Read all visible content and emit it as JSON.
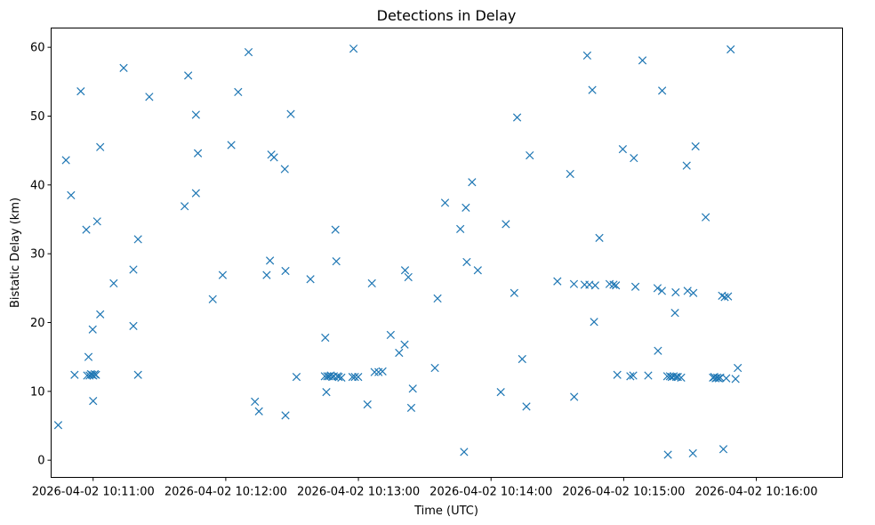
{
  "chart_data": {
    "type": "scatter",
    "title": "Detections in Delay",
    "xlabel": "Time (UTC)",
    "ylabel": "Bistatic Delay (km)",
    "marker": "x",
    "color": "#1f77b4",
    "grid": false,
    "x_units": "seconds after 2026-04-02 10:11:00 UTC",
    "xlim": [
      -19,
      339
    ],
    "ylim": [
      -2.5,
      62.8
    ],
    "x_ticks": [
      {
        "value": 0,
        "label": "2026-04-02 10:11:00"
      },
      {
        "value": 60,
        "label": "2026-04-02 10:12:00"
      },
      {
        "value": 120,
        "label": "2026-04-02 10:13:00"
      },
      {
        "value": 180,
        "label": "2026-04-02 10:14:00"
      },
      {
        "value": 240,
        "label": "2026-04-02 10:15:00"
      },
      {
        "value": 300,
        "label": "2026-04-02 10:16:00"
      }
    ],
    "y_ticks": [
      {
        "value": 0,
        "label": "0"
      },
      {
        "value": 10,
        "label": "10"
      },
      {
        "value": 20,
        "label": "20"
      },
      {
        "value": 30,
        "label": "30"
      },
      {
        "value": 40,
        "label": "40"
      },
      {
        "value": 50,
        "label": "50"
      },
      {
        "value": 60,
        "label": "60"
      }
    ],
    "points": [
      [
        -15.8,
        5.1
      ],
      [
        -12.3,
        43.6
      ],
      [
        -10.0,
        38.5
      ],
      [
        -8.4,
        12.4
      ],
      [
        -5.6,
        53.6
      ],
      [
        -3.1,
        33.5
      ],
      [
        -2.7,
        12.3
      ],
      [
        -2.1,
        15.0
      ],
      [
        -1.6,
        12.3
      ],
      [
        -1.0,
        12.5
      ],
      [
        -0.5,
        12.4
      ],
      [
        -0.2,
        19.0
      ],
      [
        0.0,
        8.6
      ],
      [
        0.1,
        12.3
      ],
      [
        0.7,
        12.5
      ],
      [
        1.3,
        12.4
      ],
      [
        1.8,
        34.7
      ],
      [
        3.2,
        45.5
      ],
      [
        3.2,
        21.2
      ],
      [
        9.3,
        25.7
      ],
      [
        13.8,
        57.0
      ],
      [
        18.2,
        27.7
      ],
      [
        18.2,
        19.5
      ],
      [
        20.3,
        32.1
      ],
      [
        20.3,
        12.4
      ],
      [
        25.4,
        52.8
      ],
      [
        41.4,
        36.9
      ],
      [
        43.0,
        55.9
      ],
      [
        46.5,
        38.8
      ],
      [
        46.5,
        50.2
      ],
      [
        47.4,
        44.6
      ],
      [
        54.1,
        23.4
      ],
      [
        58.6,
        26.9
      ],
      [
        62.5,
        45.8
      ],
      [
        65.6,
        53.5
      ],
      [
        70.3,
        59.3
      ],
      [
        73.2,
        8.5
      ],
      [
        75.0,
        7.1
      ],
      [
        78.5,
        26.9
      ],
      [
        80.0,
        29.0
      ],
      [
        80.6,
        44.4
      ],
      [
        81.8,
        44.0
      ],
      [
        86.7,
        42.3
      ],
      [
        87.0,
        27.5
      ],
      [
        87.0,
        6.5
      ],
      [
        89.4,
        50.3
      ],
      [
        92.0,
        12.1
      ],
      [
        98.3,
        26.3
      ],
      [
        104.8,
        12.2
      ],
      [
        105.0,
        17.8
      ],
      [
        105.5,
        9.9
      ],
      [
        105.9,
        12.2
      ],
      [
        106.7,
        12.2
      ],
      [
        107.5,
        12.3
      ],
      [
        108.2,
        12.1
      ],
      [
        108.9,
        12.2
      ],
      [
        109.6,
        33.5
      ],
      [
        110.0,
        28.9
      ],
      [
        110.5,
        12.2
      ],
      [
        111.1,
        12.1
      ],
      [
        112.3,
        12.0
      ],
      [
        117.3,
        12.1
      ],
      [
        117.8,
        59.8
      ],
      [
        118.4,
        12.1
      ],
      [
        119.9,
        12.1
      ],
      [
        124.1,
        8.1
      ],
      [
        126.1,
        25.7
      ],
      [
        127.3,
        12.8
      ],
      [
        129.1,
        12.8
      ],
      [
        130.9,
        12.9
      ],
      [
        134.6,
        18.2
      ],
      [
        138.4,
        15.6
      ],
      [
        140.9,
        16.8
      ],
      [
        141.1,
        27.6
      ],
      [
        142.6,
        26.6
      ],
      [
        143.9,
        7.6
      ],
      [
        144.6,
        10.4
      ],
      [
        154.6,
        13.4
      ],
      [
        155.8,
        23.5
      ],
      [
        159.2,
        37.4
      ],
      [
        166.1,
        33.6
      ],
      [
        167.8,
        1.2
      ],
      [
        168.6,
        36.7
      ],
      [
        169.0,
        28.8
      ],
      [
        171.4,
        40.4
      ],
      [
        174.0,
        27.6
      ],
      [
        184.4,
        9.9
      ],
      [
        186.7,
        34.3
      ],
      [
        190.5,
        24.3
      ],
      [
        191.8,
        49.8
      ],
      [
        194.1,
        14.7
      ],
      [
        196.0,
        7.8
      ],
      [
        197.5,
        44.3
      ],
      [
        210.0,
        26.0
      ],
      [
        215.8,
        41.6
      ],
      [
        217.5,
        25.6
      ],
      [
        217.6,
        9.2
      ],
      [
        222.3,
        25.5
      ],
      [
        223.5,
        58.8
      ],
      [
        224.5,
        25.5
      ],
      [
        225.8,
        53.8
      ],
      [
        226.6,
        20.1
      ],
      [
        227.1,
        25.4
      ],
      [
        229.0,
        32.3
      ],
      [
        233.6,
        25.6
      ],
      [
        235.4,
        25.5
      ],
      [
        236.5,
        25.4
      ],
      [
        237.1,
        12.4
      ],
      [
        239.6,
        45.2
      ],
      [
        243.0,
        12.2
      ],
      [
        244.3,
        12.3
      ],
      [
        244.6,
        43.9
      ],
      [
        245.3,
        25.2
      ],
      [
        248.5,
        58.1
      ],
      [
        251.1,
        12.3
      ],
      [
        255.3,
        25.0
      ],
      [
        255.5,
        15.9
      ],
      [
        257.4,
        53.7
      ],
      [
        257.3,
        24.6
      ],
      [
        259.7,
        12.2
      ],
      [
        260.0,
        0.8
      ],
      [
        260.9,
        12.2
      ],
      [
        261.7,
        12.1
      ],
      [
        262.6,
        12.2
      ],
      [
        263.2,
        21.4
      ],
      [
        263.5,
        24.4
      ],
      [
        263.8,
        12.1
      ],
      [
        264.5,
        12.1
      ],
      [
        266.0,
        12.0
      ],
      [
        268.5,
        42.8
      ],
      [
        268.9,
        24.6
      ],
      [
        271.5,
        24.3
      ],
      [
        271.3,
        1.0
      ],
      [
        272.5,
        45.6
      ],
      [
        277.1,
        35.3
      ],
      [
        280.4,
        12.0
      ],
      [
        281.0,
        12.1
      ],
      [
        281.6,
        11.9
      ],
      [
        282.3,
        12.0
      ],
      [
        283.0,
        11.9
      ],
      [
        283.7,
        12.0
      ],
      [
        284.5,
        23.9
      ],
      [
        285.1,
        1.6
      ],
      [
        285.7,
        23.7
      ],
      [
        286.4,
        11.9
      ],
      [
        287.2,
        23.8
      ],
      [
        288.4,
        59.7
      ],
      [
        290.6,
        11.8
      ],
      [
        291.6,
        13.4
      ]
    ]
  }
}
